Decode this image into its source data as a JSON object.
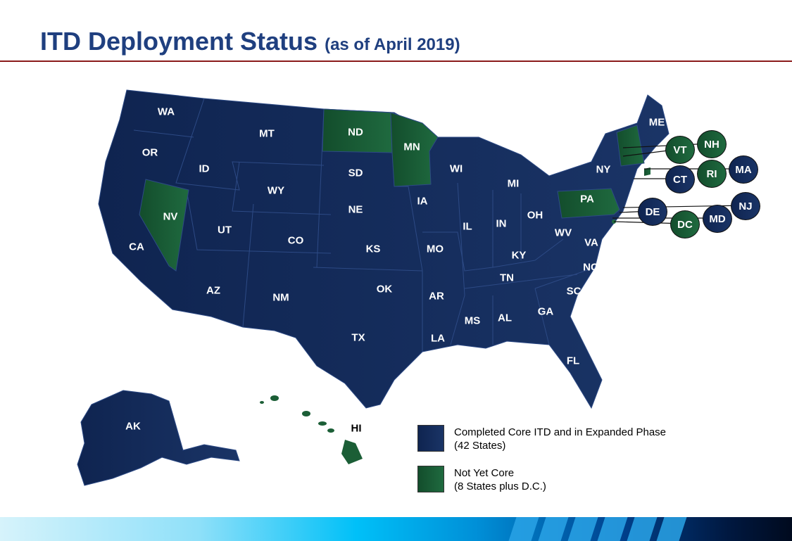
{
  "title": "ITD Deployment Status",
  "subtitle": "(as of April 2019)",
  "colors": {
    "completed": "#13295a",
    "not_yet_core": "#1b5e36",
    "title": "#1f3f7f",
    "rule": "#8b1a1a"
  },
  "states": {
    "WA": "WA",
    "OR": "OR",
    "CA": "CA",
    "ID": "ID",
    "NV": "NV",
    "MT": "MT",
    "WY": "WY",
    "UT": "UT",
    "AZ": "AZ",
    "CO": "CO",
    "NM": "NM",
    "ND": "ND",
    "SD": "SD",
    "NE": "NE",
    "KS": "KS",
    "OK": "OK",
    "TX": "TX",
    "MN": "MN",
    "IA": "IA",
    "MO": "MO",
    "AR": "AR",
    "LA": "LA",
    "WI": "WI",
    "IL": "IL",
    "MI": "MI",
    "IN": "IN",
    "OH": "OH",
    "KY": "KY",
    "TN": "TN",
    "MS": "MS",
    "AL": "AL",
    "GA": "GA",
    "FL": "FL",
    "SC": "SC",
    "NC": "NC",
    "VA": "VA",
    "WV": "WV",
    "PA": "PA",
    "NY": "NY",
    "ME": "ME",
    "AK": "AK",
    "HI": "HI"
  },
  "callouts": {
    "VT": "VT",
    "NH": "NH",
    "CT": "CT",
    "RI": "RI",
    "MA": "MA",
    "DE": "DE",
    "DC": "DC",
    "MD": "MD",
    "NJ": "NJ"
  },
  "legend": [
    {
      "line1": "Completed Core ITD and in Expanded Phase",
      "line2": "(42 States)",
      "status": "completed"
    },
    {
      "line1": "Not Yet Core",
      "line2": "(8 States plus D.C.)",
      "status": "not_yet_core"
    }
  ]
}
